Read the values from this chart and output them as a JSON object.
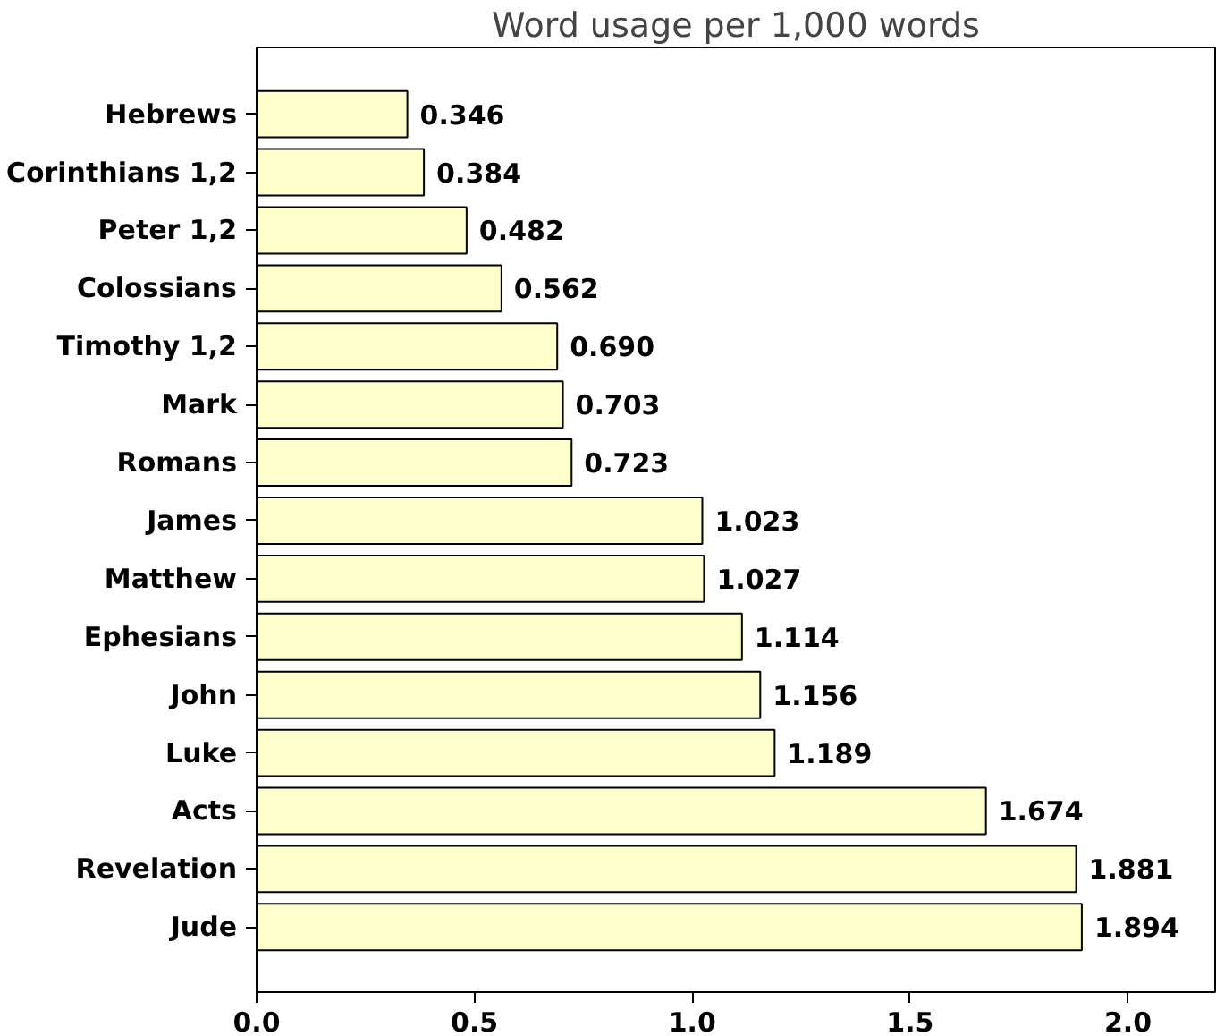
{
  "chart_data": {
    "type": "bar",
    "orientation": "horizontal",
    "title": "Word usage per 1,000 words",
    "categories": [
      "Hebrews",
      "Corinthians 1,2",
      "Peter 1,2",
      "Colossians",
      "Timothy 1,2",
      "Mark",
      "Romans",
      "James",
      "Matthew",
      "Ephesians",
      "John",
      "Luke",
      "Acts",
      "Revelation",
      "Jude"
    ],
    "values": [
      0.346,
      0.384,
      0.482,
      0.562,
      0.69,
      0.703,
      0.723,
      1.023,
      1.027,
      1.114,
      1.156,
      1.189,
      1.674,
      1.881,
      1.894
    ],
    "value_labels": [
      "0.346",
      "0.384",
      "0.482",
      "0.562",
      "0.690",
      "0.703",
      "0.723",
      "1.023",
      "1.027",
      "1.114",
      "1.156",
      "1.189",
      "1.674",
      "1.881",
      "1.894"
    ],
    "color": "#ffffcc",
    "xlim": [
      0,
      2.2
    ],
    "xticks": [
      {
        "value": 0,
        "label": "0.0"
      },
      0.5,
      {
        "value": 1,
        "label": "1.0"
      },
      1.5,
      {
        "value": 2,
        "label": "2.0"
      }
    ]
  }
}
